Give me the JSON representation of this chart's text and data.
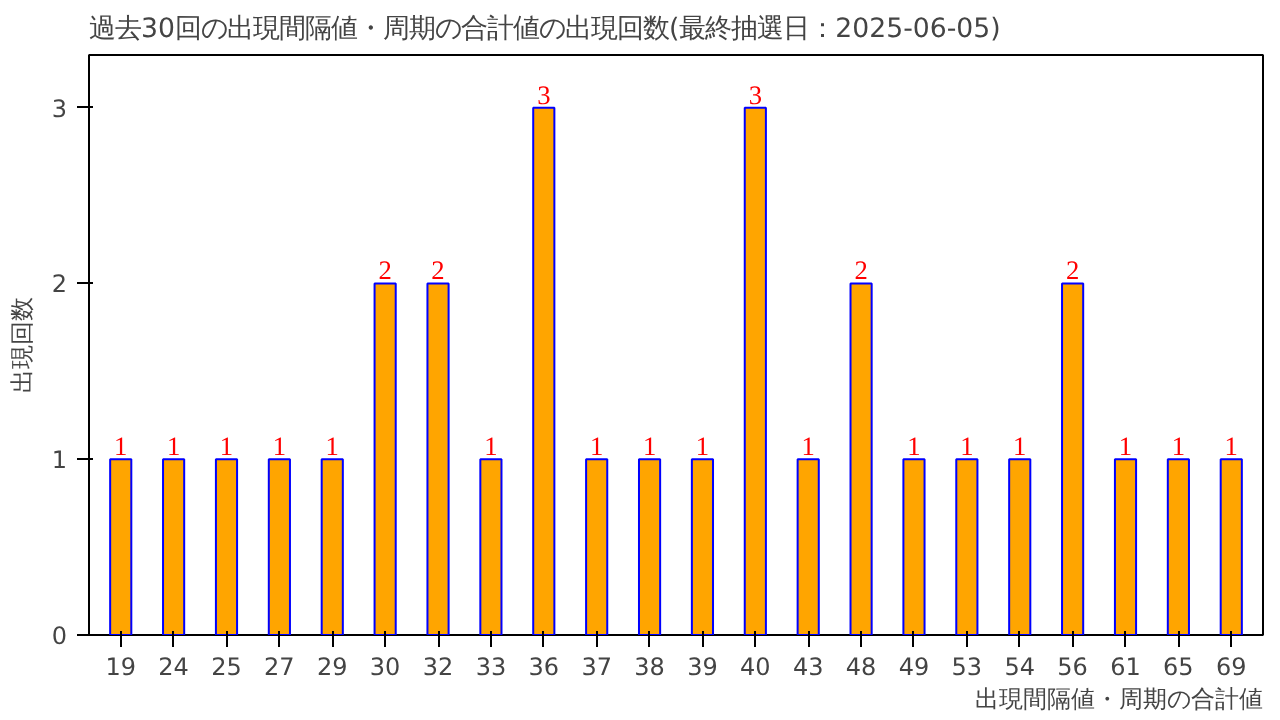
{
  "chart_data": {
    "type": "bar",
    "title": "過去30回の出現間隔値・周期の合計値の出現回数(最終抽選日：2025-06-05)",
    "xlabel": "出現間隔値・周期の合計値",
    "ylabel": "出現回数",
    "categories": [
      "19",
      "24",
      "25",
      "27",
      "29",
      "30",
      "32",
      "33",
      "36",
      "37",
      "38",
      "39",
      "40",
      "43",
      "48",
      "49",
      "53",
      "54",
      "56",
      "61",
      "65",
      "69"
    ],
    "values": [
      1,
      1,
      1,
      1,
      1,
      2,
      2,
      1,
      3,
      1,
      1,
      1,
      3,
      1,
      2,
      1,
      1,
      1,
      2,
      1,
      1,
      1
    ],
    "color": "#ffa500",
    "data_labels": true,
    "ylim": [
      0,
      3.3
    ],
    "yticks": [
      0,
      1,
      2,
      3
    ],
    "grid": false
  }
}
